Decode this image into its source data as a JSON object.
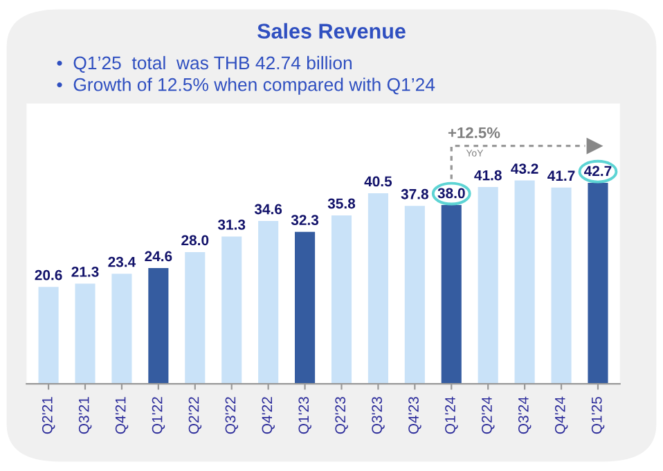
{
  "chart_data": {
    "type": "bar",
    "title": "Sales Revenue",
    "subtitle": "•  Q1’25  total  was THB 42.74 billion\n•  Growth of 12.5% when compared with Q1’24",
    "categories": [
      "Q2'21",
      "Q3'21",
      "Q4'21",
      "Q1'22",
      "Q2'22",
      "Q3'22",
      "Q4'22",
      "Q1'23",
      "Q2'23",
      "Q3'23",
      "Q4'23",
      "Q1'24",
      "Q2'24",
      "Q3'24",
      "Q4'24",
      "Q1'25"
    ],
    "values": [
      20.6,
      21.3,
      23.4,
      24.6,
      28.0,
      31.3,
      34.6,
      32.3,
      35.8,
      40.5,
      37.8,
      38.0,
      41.8,
      43.2,
      41.7,
      42.7
    ],
    "colors": [
      "#c9e2f8",
      "#c9e2f8",
      "#c9e2f8",
      "#355ca0",
      "#c9e2f8",
      "#c9e2f8",
      "#c9e2f8",
      "#355ca0",
      "#c9e2f8",
      "#c9e2f8",
      "#c9e2f8",
      "#355ca0",
      "#c9e2f8",
      "#c9e2f8",
      "#c9e2f8",
      "#355ca0"
    ],
    "value_labels": [
      "20.6",
      "21.3",
      "23.4",
      "24.6",
      "28.0",
      "31.3",
      "34.6",
      "32.3",
      "35.8",
      "40.5",
      "37.8",
      "38.0",
      "41.8",
      "43.2",
      "41.7",
      "42.7"
    ],
    "annotations": [
      "+12.5%",
      "YoY"
    ]
  }
}
